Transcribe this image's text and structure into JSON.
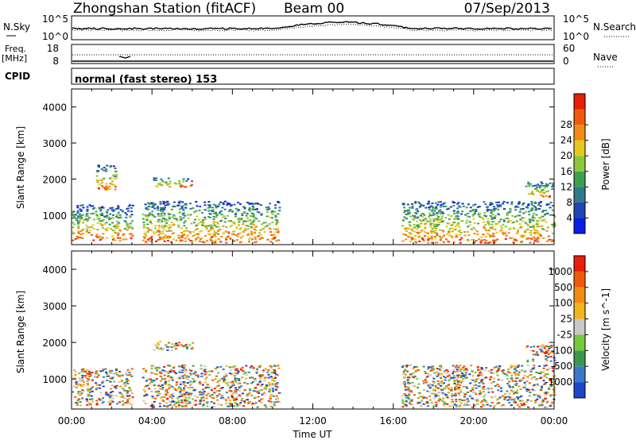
{
  "header": {
    "station": "Zhongshan Station (fitACF)",
    "beam": "Beam 00",
    "date": "07/Sep/2013"
  },
  "noise_panel": {
    "left_label": "N.Sky",
    "left_ticks": [
      "10^5",
      "10^0"
    ],
    "right_ticks": [
      "10^5",
      "10^0"
    ],
    "right_label": "N.Search"
  },
  "freq_panel": {
    "left_label_top": "Freq.",
    "left_label_unit": "[MHz]",
    "left_ticks": [
      "18",
      "8"
    ],
    "right_ticks": [
      "60",
      "0"
    ],
    "right_label": "Nave"
  },
  "cpid": {
    "label": "CPID",
    "value": "normal (fast stereo) 153"
  },
  "chart_data": [
    {
      "type": "heatmap",
      "title": "",
      "ylabel": "Slant Range [km]",
      "xlabel": "",
      "x_ticks": [
        "00:00",
        "04:00",
        "08:00",
        "12:00",
        "16:00",
        "20:00",
        "00:00"
      ],
      "y_ticks": [
        "1000",
        "2000",
        "3000",
        "4000"
      ],
      "ylim": [
        180,
        4500
      ],
      "xlim_hours": [
        0,
        24
      ],
      "colorbar": {
        "label": "Power [dB]",
        "tick_labels": [
          "4",
          "8",
          "12",
          "16",
          "20",
          "24",
          "28"
        ],
        "colors": [
          "#0a1ee6",
          "#1e46b4",
          "#32788c",
          "#3ca050",
          "#8cc83c",
          "#e6c81e",
          "#f08c14",
          "#f05a0a",
          "#e61e0a"
        ]
      },
      "echo_regions": [
        {
          "t0": 0.0,
          "t1": 3.0,
          "r0": 300,
          "r1": 1300
        },
        {
          "t0": 1.2,
          "t1": 2.2,
          "r0": 1700,
          "r1": 2400
        },
        {
          "t0": 3.5,
          "t1": 10.3,
          "r0": 250,
          "r1": 1400
        },
        {
          "t0": 4.0,
          "t1": 6.0,
          "r0": 1800,
          "r1": 2050
        },
        {
          "t0": 16.4,
          "t1": 24.0,
          "r0": 250,
          "r1": 1400
        },
        {
          "t0": 22.5,
          "t1": 24.0,
          "r0": 1500,
          "r1": 1950
        }
      ]
    },
    {
      "type": "heatmap",
      "title": "",
      "ylabel": "Slant Range [km]",
      "xlabel": "Time UT",
      "x_ticks": [
        "00:00",
        "04:00",
        "08:00",
        "12:00",
        "16:00",
        "20:00",
        "00:00"
      ],
      "y_ticks": [
        "1000",
        "2000",
        "3000",
        "4000"
      ],
      "ylim": [
        180,
        4500
      ],
      "xlim_hours": [
        0,
        24
      ],
      "colorbar": {
        "label": "Velocity [m s^-1]",
        "tick_labels": [
          "1000",
          "500",
          "100",
          "25",
          "-25",
          "-100",
          "-500",
          "-1000"
        ],
        "colors": [
          "#1e46c8",
          "#3c78c8",
          "#3c9650",
          "#78c83c",
          "#c8c8c8",
          "#f0b41e",
          "#f08c14",
          "#f05a0a",
          "#e61e0a"
        ]
      },
      "echo_regions": [
        {
          "t0": 0.0,
          "t1": 3.0,
          "r0": 300,
          "r1": 1300
        },
        {
          "t0": 3.5,
          "t1": 10.3,
          "r0": 250,
          "r1": 1400
        },
        {
          "t0": 4.0,
          "t1": 6.0,
          "r0": 1800,
          "r1": 2050
        },
        {
          "t0": 16.4,
          "t1": 24.0,
          "r0": 250,
          "r1": 1400
        },
        {
          "t0": 22.5,
          "t1": 24.0,
          "r0": 1500,
          "r1": 1950
        }
      ]
    }
  ]
}
